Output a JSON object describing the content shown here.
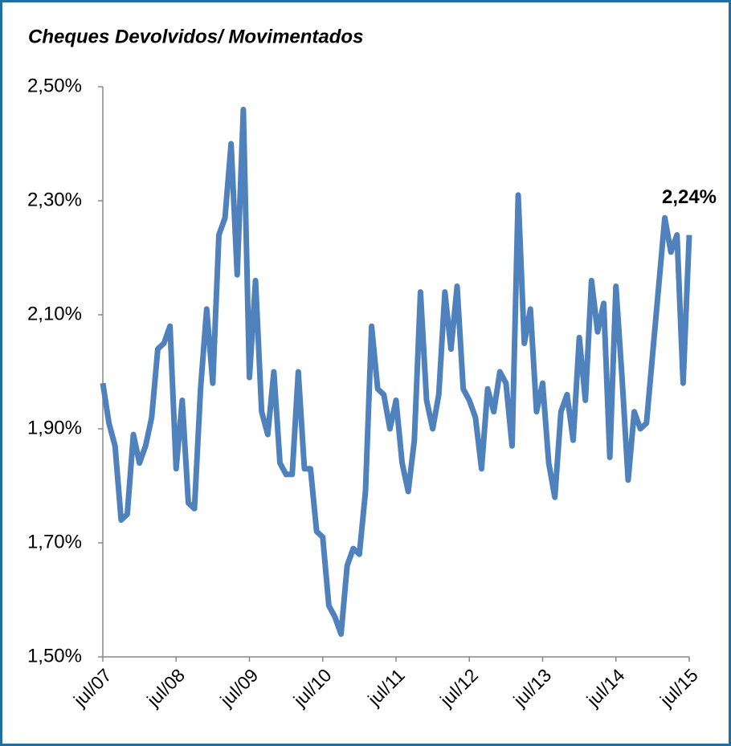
{
  "chart_data": {
    "type": "line",
    "title": "Cheques Devolvidos/ Movimentados",
    "categories": [
      "jul/07",
      null,
      null,
      null,
      null,
      null,
      null,
      null,
      null,
      null,
      null,
      null,
      "jul/08",
      null,
      null,
      null,
      null,
      null,
      null,
      null,
      null,
      null,
      null,
      null,
      "jul/09",
      null,
      null,
      null,
      null,
      null,
      null,
      null,
      null,
      null,
      null,
      null,
      "jul/10",
      null,
      null,
      null,
      null,
      null,
      null,
      null,
      null,
      null,
      null,
      null,
      "jul/11",
      null,
      null,
      null,
      null,
      null,
      null,
      null,
      null,
      null,
      null,
      null,
      "jul/12",
      null,
      null,
      null,
      null,
      null,
      null,
      null,
      null,
      null,
      null,
      null,
      "jul/13",
      null,
      null,
      null,
      null,
      null,
      null,
      null,
      null,
      null,
      null,
      null,
      "jul/14",
      null,
      null,
      null,
      null,
      null,
      null,
      null,
      null,
      null,
      null,
      null,
      "jul/15"
    ],
    "values": [
      1.98,
      1.91,
      1.87,
      1.74,
      1.75,
      1.89,
      1.84,
      1.87,
      1.92,
      2.04,
      2.05,
      2.08,
      1.83,
      1.95,
      1.77,
      1.76,
      1.97,
      2.11,
      1.98,
      2.24,
      2.27,
      2.4,
      2.17,
      2.46,
      1.99,
      2.16,
      1.93,
      1.89,
      2.0,
      1.84,
      1.82,
      1.82,
      2.0,
      1.83,
      1.83,
      1.72,
      1.71,
      1.59,
      1.57,
      1.54,
      1.66,
      1.69,
      1.68,
      1.79,
      2.08,
      1.97,
      1.96,
      1.9,
      1.95,
      1.84,
      1.79,
      1.88,
      2.14,
      1.95,
      1.9,
      1.96,
      2.14,
      2.04,
      2.15,
      1.97,
      1.95,
      1.92,
      1.83,
      1.97,
      1.93,
      2.0,
      1.98,
      1.87,
      2.31,
      2.05,
      2.11,
      1.93,
      1.98,
      1.84,
      1.78,
      1.93,
      1.96,
      1.88,
      2.06,
      1.95,
      2.16,
      2.07,
      2.12,
      1.85,
      2.15,
      1.99,
      1.81,
      1.93,
      1.9,
      1.91,
      2.03,
      2.15,
      2.27,
      2.21,
      2.24,
      1.98,
      2.24
    ],
    "value_labels": [
      null,
      null,
      null,
      null,
      null,
      null,
      null,
      null,
      null,
      null,
      null,
      null,
      null,
      null,
      null,
      null,
      null,
      null,
      null,
      null,
      null,
      null,
      null,
      null,
      null,
      null,
      null,
      null,
      null,
      null,
      null,
      null,
      null,
      null,
      null,
      null,
      null,
      null,
      null,
      null,
      null,
      null,
      null,
      null,
      null,
      null,
      null,
      null,
      null,
      null,
      null,
      null,
      null,
      null,
      null,
      null,
      null,
      null,
      null,
      null,
      null,
      null,
      null,
      null,
      null,
      null,
      null,
      null,
      null,
      null,
      null,
      null,
      null,
      null,
      null,
      null,
      null,
      null,
      null,
      null,
      null,
      null,
      null,
      null,
      null,
      null,
      null,
      null,
      null,
      null,
      null,
      null,
      null,
      null,
      null,
      null,
      "2,24%"
    ],
    "color": "#4f81bd",
    "ylim": [
      1.5,
      2.5
    ],
    "yticks": [
      {
        "value": 1.5,
        "label": "1,50%"
      },
      {
        "value": 1.7,
        "label": "1,70%"
      },
      {
        "value": 1.9,
        "label": "1,90%"
      },
      {
        "value": 2.1,
        "label": "2,10%"
      },
      {
        "value": 2.3,
        "label": "2,30%"
      },
      {
        "value": 2.5,
        "label": "2,50%"
      }
    ],
    "grid": false
  }
}
